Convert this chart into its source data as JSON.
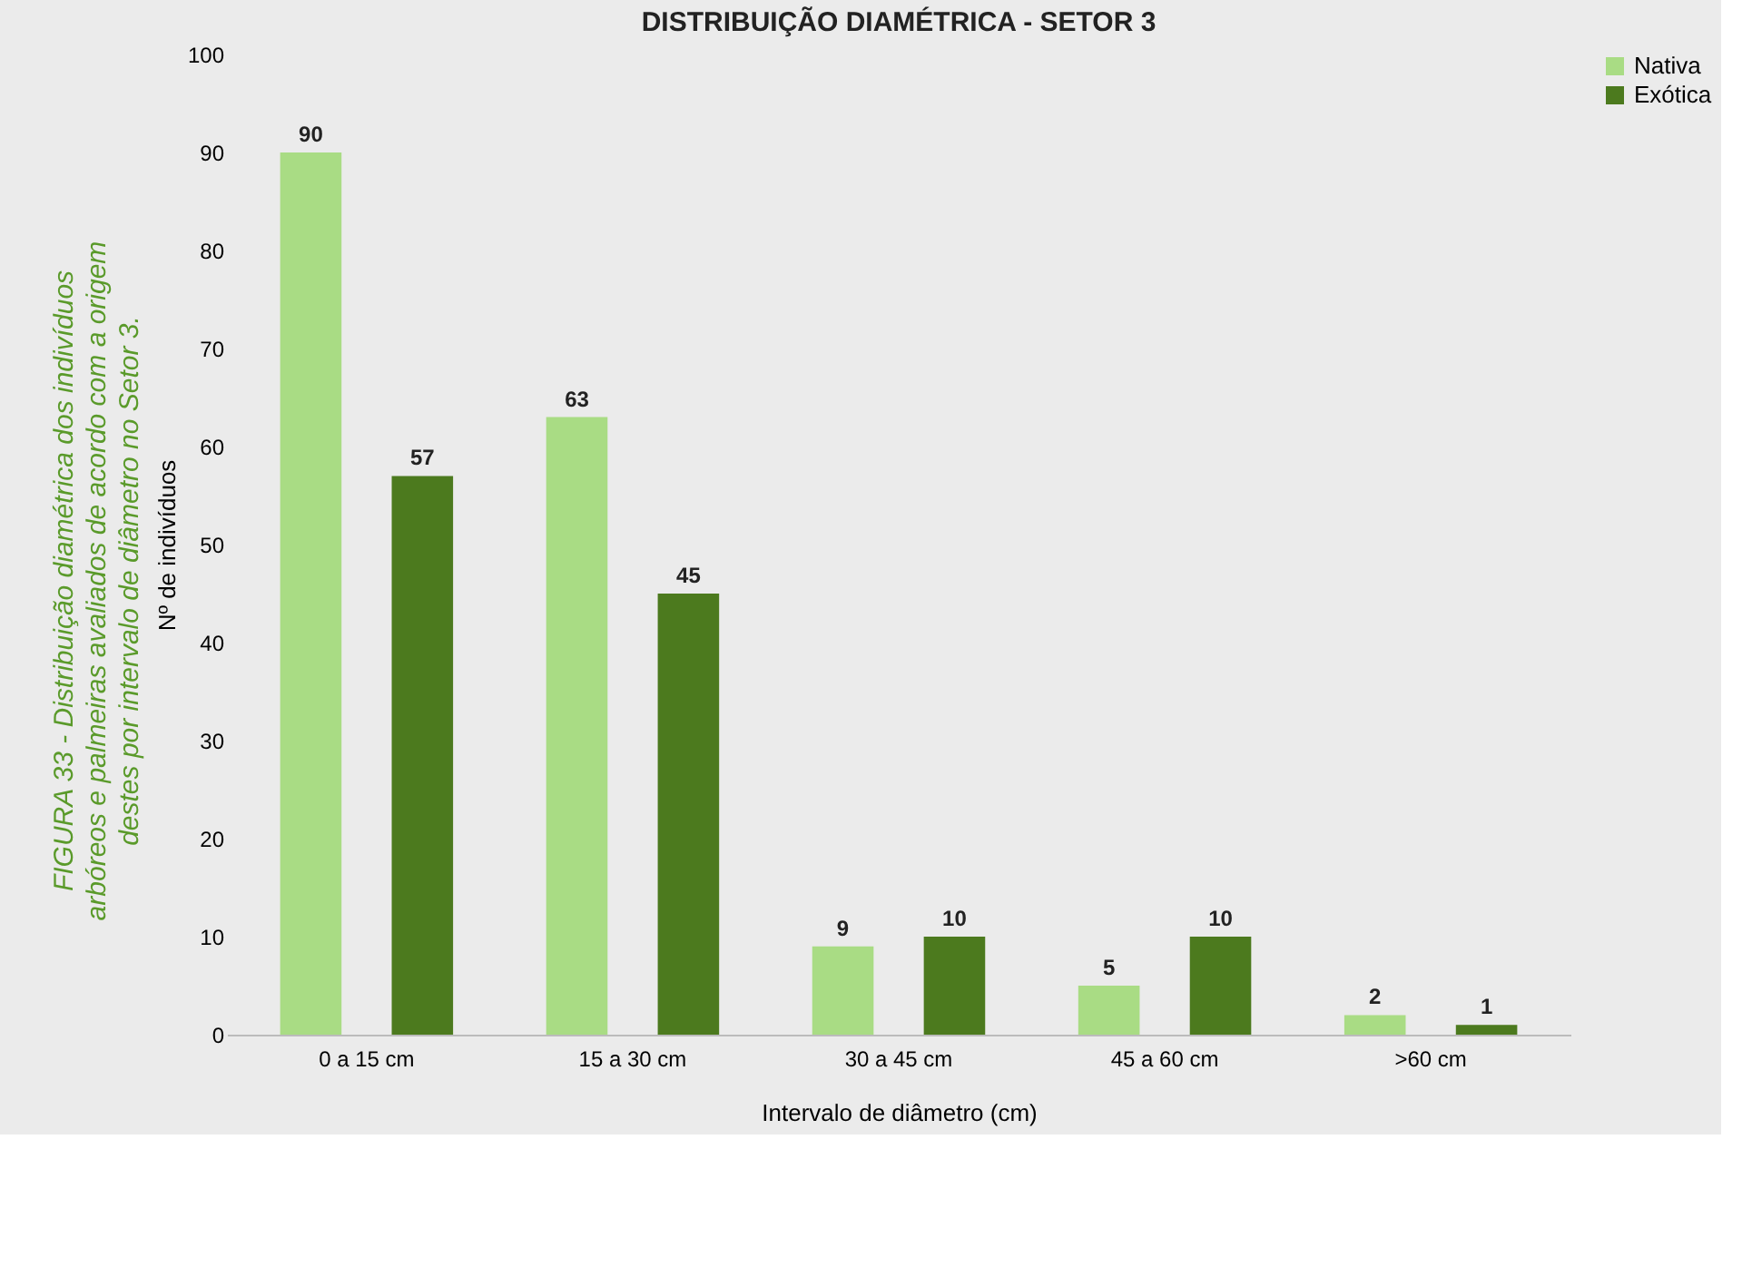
{
  "chart_data": {
    "type": "bar",
    "title": "DISTRIBUIÇÃO DIAMÉTRICA - SETOR 3",
    "xlabel": "Intervalo de diâmetro (cm)",
    "ylabel": "Nº de indivíduos",
    "categories": [
      "0 a 15 cm",
      "15 a 30 cm",
      "30 a 45 cm",
      "45 a 60 cm",
      ">60 cm"
    ],
    "series": [
      {
        "name": "Nativa",
        "color": "#a9dc84",
        "values": [
          90,
          63,
          9,
          5,
          2
        ]
      },
      {
        "name": "Exótica",
        "color": "#4c7a1e",
        "values": [
          57,
          45,
          10,
          10,
          1
        ]
      }
    ],
    "ylim": [
      0,
      100
    ],
    "yticks": [
      0,
      10,
      20,
      30,
      40,
      50,
      60,
      70,
      80,
      90,
      100
    ],
    "grid": false,
    "legend": "right",
    "data_labels": true,
    "annotations": [
      "FIGURA 33 - Distribuição diamétrica dos indivíduos arbóreos e palmeiras avaliados de acordo com a origem destes por intervalo de diâmetro no Setor 3."
    ]
  }
}
